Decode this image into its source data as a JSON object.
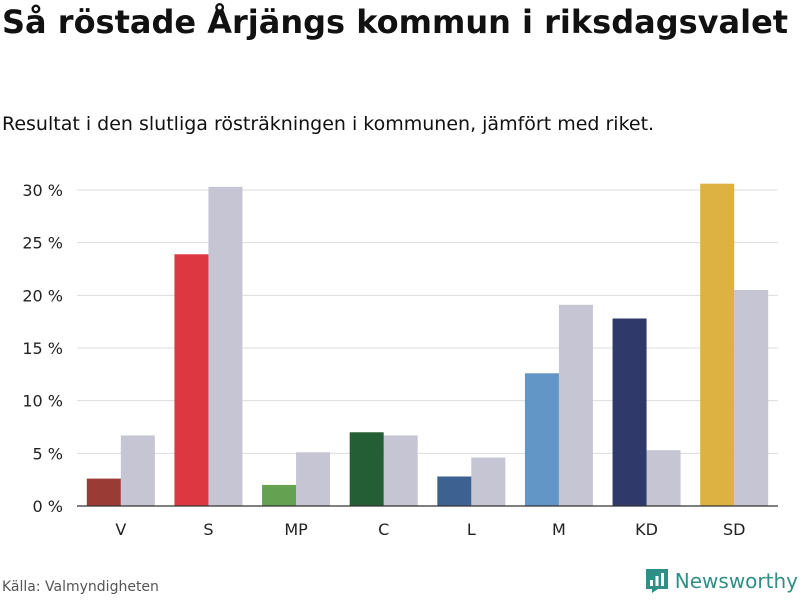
{
  "title": "Så röstade Årjängs kommun i riksdagsvalet",
  "subtitle": "Resultat i den slutliga rösträkningen i kommunen, jämfört med riket.",
  "source": "Källa: Valmyndigheten",
  "brand": {
    "name": "Newsworthy",
    "icon": "newsworthy-logo-icon",
    "color": "#2f8f86"
  },
  "chart_data": {
    "type": "bar",
    "title": "Så röstade Årjängs kommun i riksdagsvalet",
    "xlabel": "",
    "ylabel": "",
    "ylim": [
      0,
      30
    ],
    "yticks": [
      0,
      5,
      10,
      15,
      20,
      25,
      30
    ],
    "ytick_labels": [
      "0 %",
      "5 %",
      "10 %",
      "15 %",
      "20 %",
      "25 %",
      "30 %"
    ],
    "grid": true,
    "legend": "none",
    "categories": [
      "V",
      "S",
      "MP",
      "C",
      "L",
      "M",
      "KD",
      "SD"
    ],
    "series": [
      {
        "name": "Årjängs kommun",
        "values": [
          2.6,
          23.9,
          2.0,
          7.0,
          2.8,
          12.6,
          17.8,
          30.6
        ],
        "colors": [
          "#9b3b36",
          "#dd3741",
          "#64a150",
          "#245e35",
          "#3d6190",
          "#6196c7",
          "#2f3a6b",
          "#ddb142"
        ]
      },
      {
        "name": "Riket",
        "values": [
          6.7,
          30.3,
          5.1,
          6.7,
          4.6,
          19.1,
          5.3,
          20.5
        ],
        "color": "#c6c5d3"
      }
    ]
  }
}
